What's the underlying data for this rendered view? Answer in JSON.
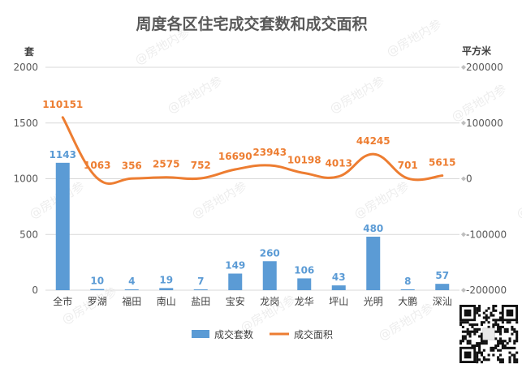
{
  "chart_data": {
    "type": "bar+line",
    "title": "周度各区住宅成交套数和成交面积",
    "left_axis_unit": "套",
    "right_axis_unit": "平方米",
    "categories": [
      "全市",
      "罗湖",
      "福田",
      "南山",
      "盐田",
      "宝安",
      "龙岗",
      "龙华",
      "坪山",
      "光明",
      "大鹏",
      "深汕"
    ],
    "left_ylim": [
      0,
      2000
    ],
    "left_ticks": [
      "0",
      "500",
      "1000",
      "1500",
      "2000"
    ],
    "right_ylim": [
      -200000,
      200000
    ],
    "right_ticks": [
      "-200000",
      "-100000",
      "0",
      "100000",
      "200000"
    ],
    "series": [
      {
        "name": "成交套数",
        "type": "bar",
        "axis": "left",
        "color": "#5b9bd5",
        "values": [
          1143,
          10,
          4,
          19,
          7,
          149,
          260,
          106,
          43,
          480,
          8,
          57
        ]
      },
      {
        "name": "成交面积",
        "type": "line",
        "axis": "right",
        "color": "#ed7d31",
        "values": [
          110151,
          1063,
          356,
          2575,
          752,
          16690,
          23943,
          10198,
          4013,
          44245,
          701,
          5615
        ]
      }
    ],
    "grid": true,
    "legend_position": "bottom"
  },
  "watermark_text": "@房地内参"
}
